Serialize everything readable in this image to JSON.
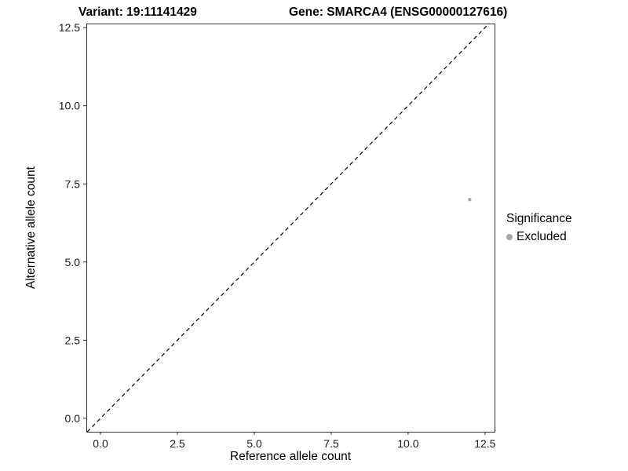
{
  "chart_data": {
    "type": "scatter",
    "title_left": "Variant: 19:11141429",
    "title_right": "Gene: SMARCA4 (ENSG00000127616)",
    "xlabel": "Reference allele count",
    "ylabel": "Alternative allele count",
    "xlim": [
      -0.46,
      12.81
    ],
    "ylim": [
      -0.43,
      12.63
    ],
    "xticks": [
      0.0,
      2.5,
      5.0,
      7.5,
      10.0,
      12.5
    ],
    "yticks": [
      0.0,
      2.5,
      5.0,
      7.5,
      10.0,
      12.5
    ],
    "grid": false,
    "panel_border_color": "#333333",
    "reference_line": {
      "type": "identity",
      "style": "dashed",
      "color": "#000000"
    },
    "points": [
      {
        "x": 12.0,
        "y": 7.0,
        "series": "Excluded",
        "color": "#a6a6a6"
      }
    ],
    "legend": {
      "title": "Significance",
      "position": "right",
      "entries": [
        {
          "label": "Excluded",
          "color": "#a6a6a6"
        }
      ]
    }
  }
}
